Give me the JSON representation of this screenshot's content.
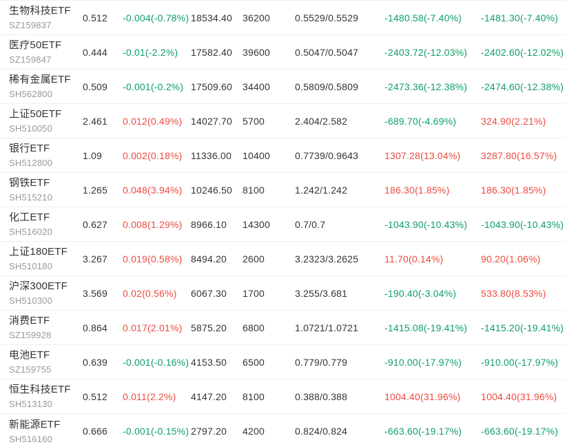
{
  "colors": {
    "up_red": "#ec4a3f",
    "down_green": "#0d9e64",
    "text_dark": "#333333",
    "code_gray": "#999999",
    "divider": "#efefef",
    "bg": "#ffffff"
  },
  "table": {
    "rows": [
      {
        "name": "生物科技ETF",
        "code": "SZ159837",
        "price": "0.512",
        "change": "-0.004(-0.78%)",
        "amount": "18534.40",
        "volume": "36200",
        "bid_ask": "0.5529/0.5529",
        "flow1": "-1480.58(-7.40%)",
        "flow2": "-1481.30(-7.40%)"
      },
      {
        "name": "医疗50ETF",
        "code": "SZ159847",
        "price": "0.444",
        "change": "-0.01(-2.2%)",
        "amount": "17582.40",
        "volume": "39600",
        "bid_ask": "0.5047/0.5047",
        "flow1": "-2403.72(-12.03%)",
        "flow2": "-2402.60(-12.02%)"
      },
      {
        "name": "稀有金属ETF",
        "code": "SH562800",
        "price": "0.509",
        "change": "-0.001(-0.2%)",
        "amount": "17509.60",
        "volume": "34400",
        "bid_ask": "0.5809/0.5809",
        "flow1": "-2473.36(-12.38%)",
        "flow2": "-2474.60(-12.38%)"
      },
      {
        "name": "上证50ETF",
        "code": "SH510050",
        "price": "2.461",
        "change": "0.012(0.49%)",
        "amount": "14027.70",
        "volume": "5700",
        "bid_ask": "2.404/2.582",
        "flow1": "-689.70(-4.69%)",
        "flow2": "324.90(2.21%)"
      },
      {
        "name": "银行ETF",
        "code": "SH512800",
        "price": "1.09",
        "change": "0.002(0.18%)",
        "amount": "11336.00",
        "volume": "10400",
        "bid_ask": "0.7739/0.9643",
        "flow1": "1307.28(13.04%)",
        "flow2": "3287.80(16.57%)"
      },
      {
        "name": "钢铁ETF",
        "code": "SH515210",
        "price": "1.265",
        "change": "0.048(3.94%)",
        "amount": "10246.50",
        "volume": "8100",
        "bid_ask": "1.242/1.242",
        "flow1": "186.30(1.85%)",
        "flow2": "186.30(1.85%)"
      },
      {
        "name": "化工ETF",
        "code": "SH516020",
        "price": "0.627",
        "change": "0.008(1.29%)",
        "amount": "8966.10",
        "volume": "14300",
        "bid_ask": "0.7/0.7",
        "flow1": "-1043.90(-10.43%)",
        "flow2": "-1043.90(-10.43%)"
      },
      {
        "name": "上证180ETF",
        "code": "SH510180",
        "price": "3.267",
        "change": "0.019(0.58%)",
        "amount": "8494.20",
        "volume": "2600",
        "bid_ask": "3.2323/3.2625",
        "flow1": "11.70(0.14%)",
        "flow2": "90.20(1.06%)"
      },
      {
        "name": "沪深300ETF",
        "code": "SH510300",
        "price": "3.569",
        "change": "0.02(0.56%)",
        "amount": "6067.30",
        "volume": "1700",
        "bid_ask": "3.255/3.681",
        "flow1": "-190.40(-3.04%)",
        "flow2": "533.80(8.53%)"
      },
      {
        "name": "消费ETF",
        "code": "SZ159928",
        "price": "0.864",
        "change": "0.017(2.01%)",
        "amount": "5875.20",
        "volume": "6800",
        "bid_ask": "1.0721/1.0721",
        "flow1": "-1415.08(-19.41%)",
        "flow2": "-1415.20(-19.41%)"
      },
      {
        "name": "电池ETF",
        "code": "SZ159755",
        "price": "0.639",
        "change": "-0.001(-0.16%)",
        "amount": "4153.50",
        "volume": "6500",
        "bid_ask": "0.779/0.779",
        "flow1": "-910.00(-17.97%)",
        "flow2": "-910.00(-17.97%)"
      },
      {
        "name": "恒生科技ETF",
        "code": "SH513130",
        "price": "0.512",
        "change": "0.011(2.2%)",
        "amount": "4147.20",
        "volume": "8100",
        "bid_ask": "0.388/0.388",
        "flow1": "1004.40(31.96%)",
        "flow2": "1004.40(31.96%)"
      },
      {
        "name": "新能源ETF",
        "code": "SH516160",
        "price": "0.666",
        "change": "-0.001(-0.15%)",
        "amount": "2797.20",
        "volume": "4200",
        "bid_ask": "0.824/0.824",
        "flow1": "-663.60(-19.17%)",
        "flow2": "-663.60(-19.17%)"
      }
    ]
  }
}
